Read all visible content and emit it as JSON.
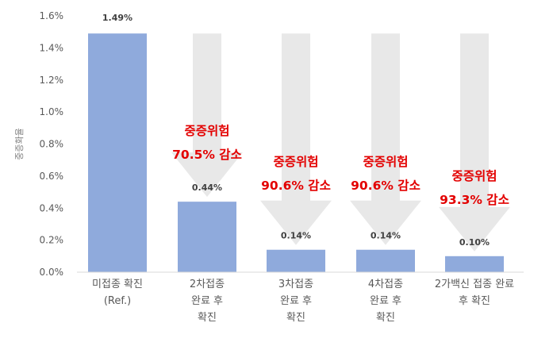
{
  "chart_data": {
    "type": "bar",
    "ylabel": "중증화율",
    "ylim": [
      0,
      1.6
    ],
    "yticks": [
      "0.0%",
      "0.2%",
      "0.4%",
      "0.6%",
      "0.8%",
      "1.0%",
      "1.2%",
      "1.4%",
      "1.6%"
    ],
    "categories": [
      [
        "미접종 확진",
        "(Ref.)"
      ],
      [
        "2차접종",
        "완료 후",
        "확진"
      ],
      [
        "3차접종",
        "완료 후",
        "확진"
      ],
      [
        "4차접종",
        "완료 후",
        "확진"
      ],
      [
        "2가백신 접종 완료",
        "후 확진"
      ]
    ],
    "values": [
      1.49,
      0.44,
      0.14,
      0.14,
      0.1
    ],
    "data_labels": [
      "1.49%",
      "0.44%",
      "0.14%",
      "0.14%",
      "0.10%"
    ],
    "annotations": [
      null,
      [
        "중증위험",
        "70.5% 감소"
      ],
      [
        "중증위험",
        "90.6% 감소"
      ],
      [
        "중증위험",
        "90.6% 감소"
      ],
      [
        "중증위험",
        "93.3% 감소"
      ]
    ],
    "colors": {
      "bar": "#8faadc",
      "arrow": "#e8e8e8",
      "annotation": "#e30000"
    },
    "grid": false,
    "legend": "none"
  }
}
